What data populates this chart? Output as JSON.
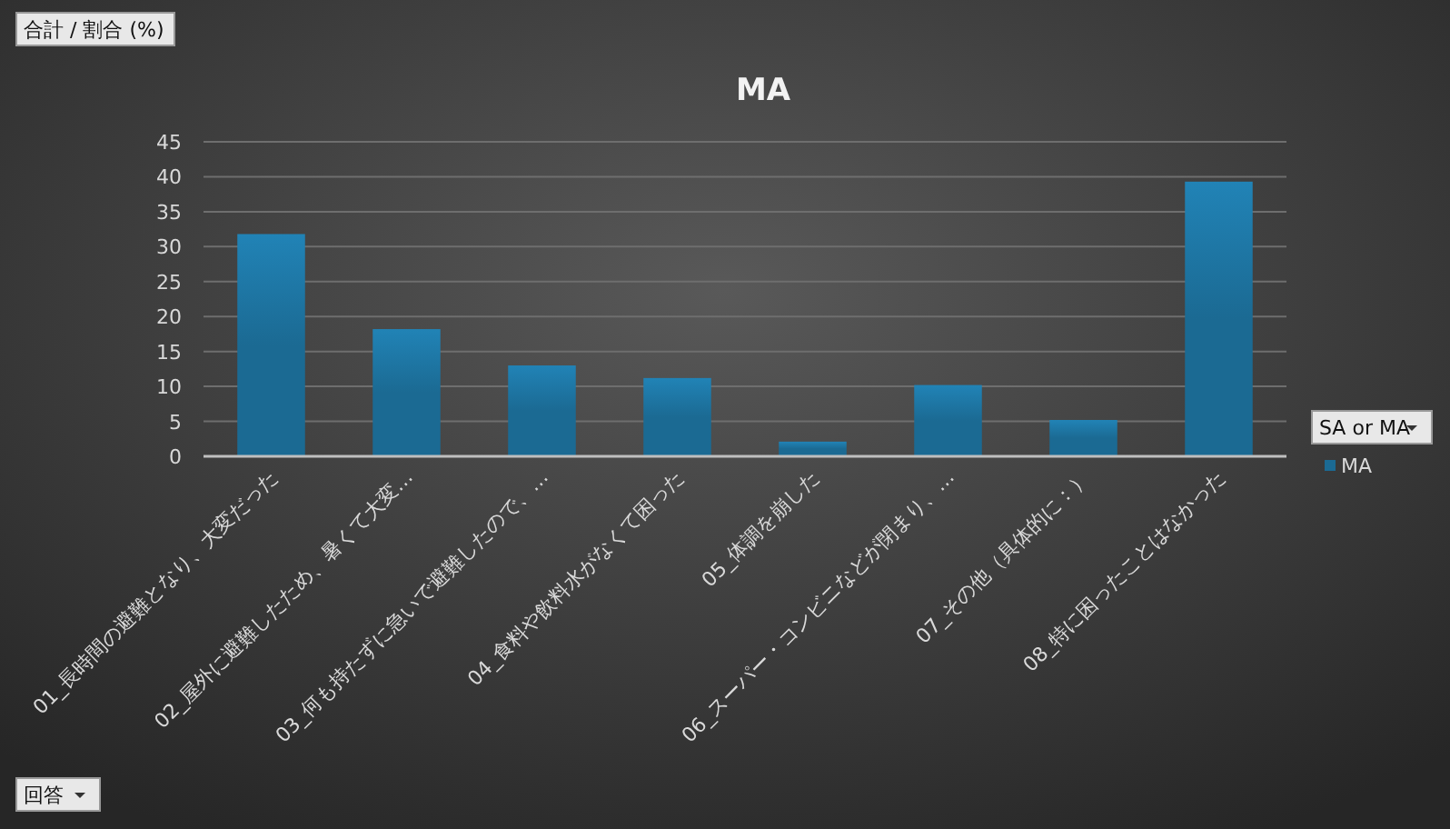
{
  "chart_data": {
    "type": "bar",
    "title": "MA",
    "xlabel": "回答",
    "ylabel": "合計 / 割合 (%)",
    "legend_title": "SA or MA",
    "categories": [
      "01_長時間の避難となり、大変だった",
      "02_屋外に避難したため、暑くて大変…",
      "03_何も持たずに急いで避難したので、…",
      "04_食料や飲料水がなくて困った",
      "05_体調を崩した",
      "06_スーパー・コンビニなどが閉まり、…",
      "07_その他（具体的に：）",
      "08_特に困ったことはなかった"
    ],
    "series": [
      {
        "name": "MA",
        "color": "#1b6a93",
        "values": [
          31.8,
          18.2,
          13.0,
          11.2,
          2.1,
          10.2,
          5.2,
          39.3
        ]
      }
    ],
    "ylim": [
      0,
      45
    ],
    "yticks": [
      0,
      5,
      10,
      15,
      20,
      25,
      30,
      35,
      40,
      45
    ],
    "grid": "y",
    "legend": "right"
  }
}
